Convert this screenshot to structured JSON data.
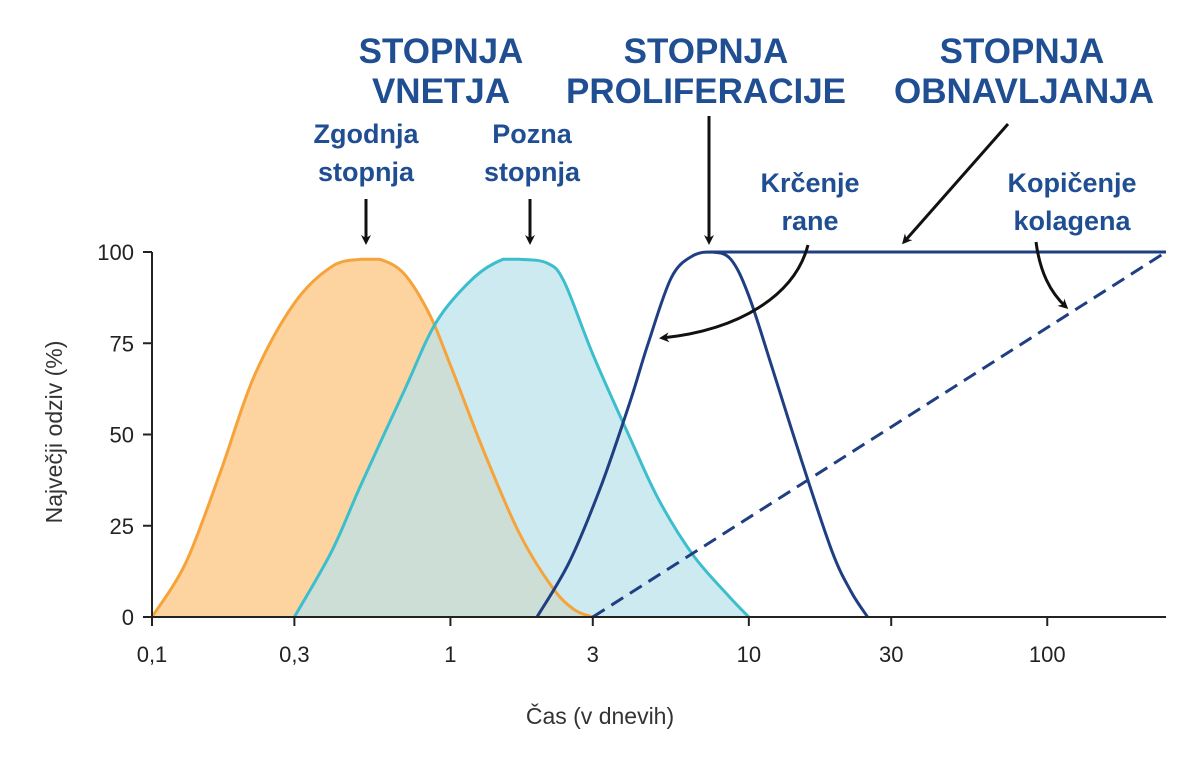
{
  "chart_data": {
    "type": "area",
    "xlabel": "Čas (v dnevih)",
    "ylabel": "Največji odziv (%)",
    "x_scale": "log",
    "xlim": [
      0.1,
      250
    ],
    "ylim": [
      0,
      100
    ],
    "x_ticks": [
      0.1,
      0.3,
      1,
      3,
      10,
      30,
      100
    ],
    "x_tick_labels": [
      "0,1",
      "0,3",
      "1",
      "3",
      "10",
      "30",
      "100"
    ],
    "y_ticks": [
      0,
      25,
      50,
      75,
      100
    ],
    "y_tick_labels": [
      "0",
      "25",
      "50",
      "75",
      "100"
    ],
    "grid": false,
    "colors": {
      "early": "#f5a33a",
      "early_fill": "#fdd3a0",
      "late": "#3cbecc",
      "late_fill": "#b8e2ea",
      "proliferation": "#1f3f82",
      "text": "#1f4e93",
      "arrow": "#111111"
    },
    "series": [
      {
        "x": [
          0.1,
          0.13,
          0.17,
          0.22,
          0.3,
          0.4,
          0.5,
          0.58,
          0.7,
          0.85,
          1,
          1.3,
          1.7,
          2.2,
          2.6,
          3
        ],
        "y": [
          0,
          15,
          40,
          66,
          86,
          96,
          98,
          98,
          94,
          83,
          69,
          45,
          23,
          8,
          2,
          0
        ]
      },
      {
        "x": [
          0.3,
          0.4,
          0.5,
          0.7,
          0.9,
          1.2,
          1.5,
          1.7,
          2.1,
          2.4,
          3,
          4,
          5,
          6.5,
          8.5,
          10
        ],
        "y": [
          0,
          18,
          36,
          62,
          81,
          93,
          98,
          98,
          97,
          92,
          72,
          49,
          32,
          17,
          6,
          0
        ]
      },
      {
        "x": [
          1.95,
          2.5,
          3.2,
          4,
          4.6,
          5.5,
          6.5,
          7.5,
          8.7,
          10,
          12,
          15,
          19,
          22,
          25
        ],
        "y": [
          0,
          15,
          36,
          59,
          75,
          93,
          99,
          100,
          98,
          88,
          68,
          43,
          18,
          7,
          0
        ]
      },
      {
        "x": [
          7.5,
          250
        ],
        "y": [
          100,
          100
        ]
      },
      {
        "x": [
          3,
          250
        ],
        "y": [
          0,
          100
        ],
        "style": "dashed"
      }
    ],
    "annotations": {
      "inflammation": [
        "STOPNJA",
        "VNETJA"
      ],
      "proliferation": [
        "STOPNJA",
        "PROLIFERACIJE"
      ],
      "remodeling": [
        "STOPNJA",
        "OBNAVLJANJA"
      ],
      "early": [
        "Zgodnja",
        "stopnja"
      ],
      "late": [
        "Pozna",
        "stopnja"
      ],
      "wound": [
        "Krčenje",
        "rane"
      ],
      "collagen": [
        "Kopičenje",
        "kolagena"
      ]
    }
  }
}
